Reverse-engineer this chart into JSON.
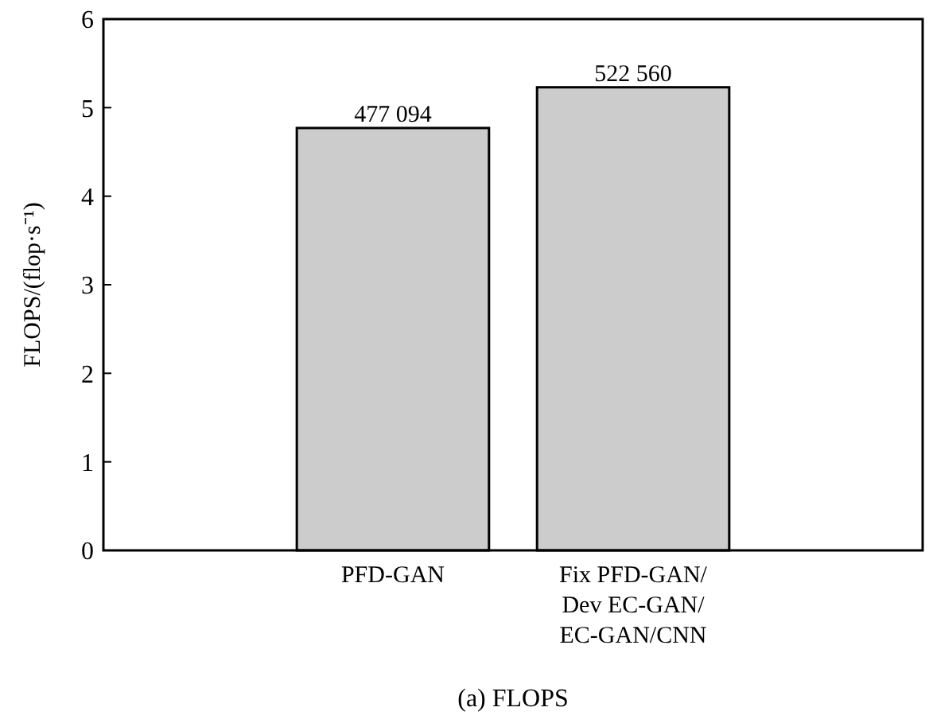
{
  "chart_data": {
    "type": "bar",
    "title": "(a) FLOPS",
    "ylabel": "FLOPS/(flop·s⁻¹)",
    "categories": [
      "PFD-GAN",
      "Fix PFD-GAN/\nDev EC-GAN/\nEC-GAN/CNN"
    ],
    "values": [
      4.77,
      5.23
    ],
    "color": "#cccccc",
    "annotations": [
      {
        "text": "477 094",
        "x": "PFD-GAN",
        "y": 4.77
      },
      {
        "text": "522 560",
        "x": "Fix PFD-GAN/\nDev EC-GAN/\nEC-GAN/CNN",
        "y": 5.23
      }
    ],
    "ylim": [
      0,
      6
    ],
    "yticks": [
      0,
      1,
      2,
      3,
      4,
      5,
      6
    ],
    "grid": false
  }
}
